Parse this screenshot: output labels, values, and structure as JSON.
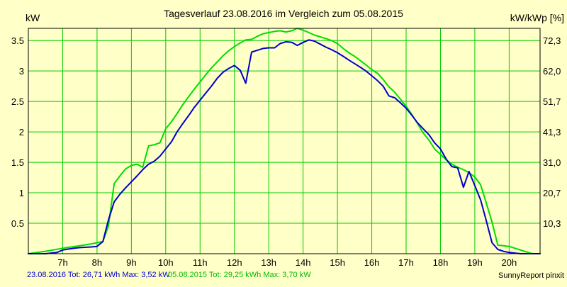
{
  "chart_data": {
    "type": "line",
    "title": "Tagesverlauf 23.08.2016 im Vergleich zum 05.08.2015",
    "ylabel_left": "kW",
    "ylabel_right": "kW/kWp [%]",
    "xlim": [
      6.0,
      20.9
    ],
    "ylim": [
      0,
      3.7
    ],
    "grid": true,
    "x_ticks": [
      7,
      8,
      9,
      10,
      11,
      12,
      13,
      14,
      15,
      16,
      17,
      18,
      19,
      20
    ],
    "x_tick_labels": [
      "7h",
      "8h",
      "9h",
      "10h",
      "11h",
      "12h",
      "13h",
      "14h",
      "15h",
      "16h",
      "17h",
      "18h",
      "19h",
      "20h"
    ],
    "y_ticks_left": [
      0.5,
      1,
      1.5,
      2,
      2.5,
      3,
      3.5
    ],
    "y_tick_labels_left": [
      "0.5",
      "1",
      "1.5",
      "2",
      "2.5",
      "3",
      "3.5"
    ],
    "y_tick_labels_right": [
      "10,3",
      "20,7",
      "31,0",
      "41,3",
      "51,7",
      "62,0",
      "72,3"
    ],
    "series": [
      {
        "name": "23.08.2016",
        "color": "#0000cc",
        "x": [
          6.0,
          6.5,
          6.83,
          7.0,
          7.33,
          7.5,
          7.83,
          8.0,
          8.17,
          8.33,
          8.5,
          8.67,
          8.83,
          9.0,
          9.17,
          9.33,
          9.5,
          9.67,
          9.83,
          10.0,
          10.17,
          10.33,
          10.5,
          10.67,
          10.83,
          11.0,
          11.17,
          11.33,
          11.5,
          11.67,
          11.83,
          12.0,
          12.17,
          12.33,
          12.5,
          12.67,
          12.83,
          13.0,
          13.17,
          13.33,
          13.5,
          13.67,
          13.83,
          14.0,
          14.17,
          14.33,
          14.5,
          14.67,
          14.83,
          15.0,
          15.17,
          15.33,
          15.5,
          15.67,
          15.83,
          16.0,
          16.17,
          16.33,
          16.5,
          16.67,
          16.83,
          17.0,
          17.17,
          17.33,
          17.5,
          17.67,
          17.83,
          18.0,
          18.17,
          18.33,
          18.5,
          18.67,
          18.83,
          19.0,
          19.17,
          19.33,
          19.5,
          19.67,
          19.83,
          20.0,
          20.33,
          20.67,
          20.9
        ],
        "y": [
          0.0,
          0.0,
          0.02,
          0.06,
          0.09,
          0.1,
          0.11,
          0.12,
          0.2,
          0.55,
          0.85,
          0.98,
          1.08,
          1.18,
          1.28,
          1.38,
          1.47,
          1.52,
          1.6,
          1.72,
          1.84,
          2.0,
          2.14,
          2.27,
          2.4,
          2.52,
          2.64,
          2.75,
          2.88,
          2.98,
          3.04,
          3.09,
          3.01,
          2.8,
          3.31,
          3.34,
          3.37,
          3.38,
          3.38,
          3.45,
          3.48,
          3.47,
          3.42,
          3.47,
          3.51,
          3.49,
          3.44,
          3.39,
          3.35,
          3.3,
          3.24,
          3.18,
          3.12,
          3.06,
          3.0,
          2.92,
          2.84,
          2.75,
          2.59,
          2.56,
          2.48,
          2.39,
          2.27,
          2.15,
          2.05,
          1.95,
          1.82,
          1.72,
          1.55,
          1.43,
          1.41,
          1.09,
          1.35,
          1.12,
          0.88,
          0.55,
          0.18,
          0.07,
          0.04,
          0.02,
          0.0,
          0.0,
          0.0
        ]
      },
      {
        "name": "05.08.2015",
        "color": "#00dd00",
        "x": [
          6.0,
          6.5,
          7.0,
          7.5,
          7.83,
          8.0,
          8.17,
          8.33,
          8.5,
          8.67,
          8.83,
          9.0,
          9.17,
          9.33,
          9.5,
          9.67,
          9.83,
          10.0,
          10.17,
          10.33,
          10.5,
          10.67,
          10.83,
          11.0,
          11.17,
          11.33,
          11.5,
          11.67,
          11.83,
          12.0,
          12.17,
          12.33,
          12.5,
          12.67,
          12.83,
          13.0,
          13.17,
          13.33,
          13.5,
          13.67,
          13.83,
          14.0,
          14.17,
          14.33,
          14.5,
          14.67,
          14.83,
          15.0,
          15.17,
          15.33,
          15.5,
          15.67,
          15.83,
          16.0,
          16.17,
          16.33,
          16.5,
          16.67,
          16.83,
          17.0,
          17.17,
          17.33,
          17.5,
          17.67,
          17.83,
          18.0,
          18.17,
          18.33,
          18.5,
          18.67,
          18.83,
          19.0,
          19.17,
          19.33,
          19.5,
          19.67,
          19.83,
          20.0,
          20.33,
          20.67,
          20.9
        ],
        "y": [
          0.0,
          0.04,
          0.09,
          0.13,
          0.16,
          0.18,
          0.2,
          0.45,
          1.15,
          1.28,
          1.39,
          1.45,
          1.47,
          1.42,
          1.77,
          1.79,
          1.82,
          2.05,
          2.17,
          2.3,
          2.45,
          2.58,
          2.7,
          2.82,
          2.94,
          3.05,
          3.15,
          3.25,
          3.33,
          3.4,
          3.46,
          3.51,
          3.52,
          3.57,
          3.61,
          3.63,
          3.65,
          3.66,
          3.64,
          3.66,
          3.7,
          3.67,
          3.63,
          3.59,
          3.56,
          3.53,
          3.5,
          3.45,
          3.37,
          3.3,
          3.24,
          3.17,
          3.1,
          3.02,
          2.96,
          2.86,
          2.74,
          2.65,
          2.54,
          2.42,
          2.28,
          2.14,
          1.98,
          1.86,
          1.72,
          1.63,
          1.54,
          1.47,
          1.42,
          1.38,
          1.33,
          1.26,
          1.13,
          0.84,
          0.52,
          0.14,
          0.13,
          0.12,
          0.06,
          0.0,
          0.0
        ]
      }
    ]
  },
  "footer": {
    "series1_summary": "23.08.2016 Tot: 26,71 kWh Max: 3,52 kW",
    "series2_summary": "05.08.2015 Tot: 29,25 kWh Max: 3,70 kW",
    "credit": "SunnyReport pinxit"
  }
}
